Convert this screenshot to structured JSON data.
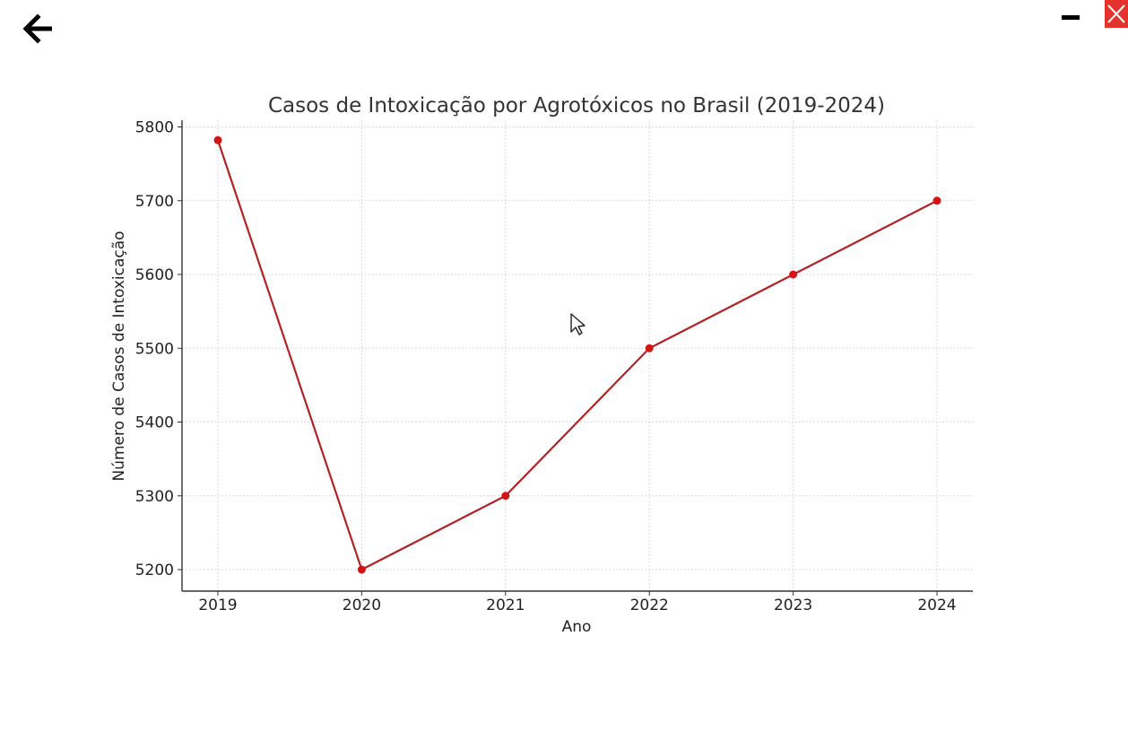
{
  "toolbar": {
    "back_icon": "arrow-left-icon",
    "minimize_icon": "minus-icon",
    "close_icon": "close-x-icon",
    "close_color": "#e5322d"
  },
  "chart_data": {
    "type": "line",
    "title": "Casos de Intoxicação por Agrotóxicos no Brasil (2019-2024)",
    "xlabel": "Ano",
    "ylabel": "Número de Casos de Intoxicação",
    "categories": [
      "2019",
      "2020",
      "2021",
      "2022",
      "2023",
      "2024"
    ],
    "series": [
      {
        "values": [
          5782,
          5200,
          5300,
          5500,
          5600,
          5700
        ],
        "color": "#b22222",
        "marker_color": "#d41414"
      }
    ],
    "yticks": [
      5200,
      5300,
      5400,
      5500,
      5600,
      5700,
      5800
    ],
    "ylim": [
      5170,
      5810
    ],
    "grid": true,
    "legend": "none"
  }
}
